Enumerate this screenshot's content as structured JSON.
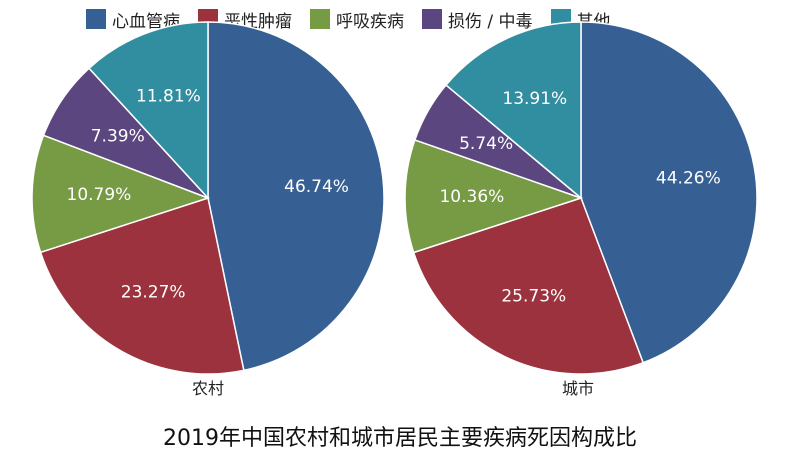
{
  "chart_data": {
    "type": "pie",
    "title": "2019年中国农村和城市居民主要疾病死因构成比",
    "legend_position": "top",
    "categories": [
      "心血管病",
      "恶性肿瘤",
      "呼吸疾病",
      "损伤 / 中毒",
      "其他"
    ],
    "colors": [
      "#365f94",
      "#9b323d",
      "#779a45",
      "#5b467f",
      "#318da0"
    ],
    "series": [
      {
        "name": "农村",
        "values": [
          46.74,
          23.27,
          10.79,
          7.39,
          11.81
        ],
        "labels": [
          "46.74%",
          "23.27%",
          "10.79%",
          "7.39%",
          "11.81%"
        ]
      },
      {
        "name": "城市",
        "values": [
          44.26,
          25.73,
          10.36,
          5.74,
          13.91
        ],
        "labels": [
          "44.26%",
          "25.73%",
          "10.36%",
          "5.74%",
          "13.91%"
        ]
      }
    ]
  }
}
